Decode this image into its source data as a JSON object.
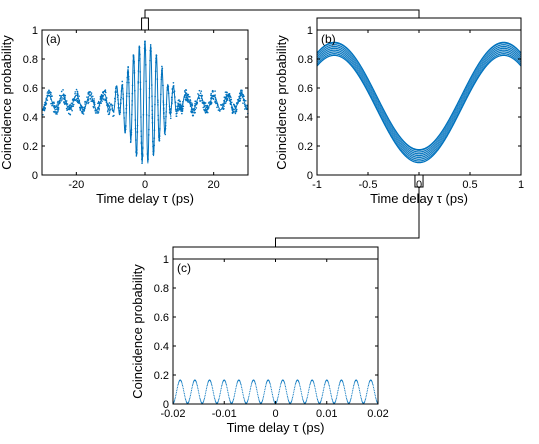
{
  "colors": {
    "series": "#0072BD",
    "axis": "#000000",
    "bracket": "#000000"
  },
  "chart_data": [
    {
      "id": "a",
      "type": "scatter",
      "panel_label": "(a)",
      "xlabel": "Time delay τ (ps)",
      "ylabel": "Coincidence probability",
      "xlim": [
        -30,
        30
      ],
      "ylim": [
        0,
        1
      ],
      "xticks": [
        -20,
        0,
        20
      ],
      "yticks": [
        0,
        0.2,
        0.4,
        0.6,
        0.8,
        1
      ],
      "xtick_labels": [
        "-20",
        "0",
        "20"
      ],
      "ytick_labels": [
        "0",
        "0.2",
        "0.4",
        "0.6",
        "0.8",
        "1"
      ],
      "grid": false,
      "series": [
        {
          "model": "HOM interference fringes",
          "baseline": 0.5,
          "peak_amplitude": 0.42,
          "envelope_width_ps": 4.5,
          "fringe_period_ps": 1.66,
          "background_fringe_amplitude": 0.05,
          "background_fringe_period_ps": 4.0,
          "noise_amplitude": 0.04,
          "x_range": [
            -30,
            30
          ]
        }
      ]
    },
    {
      "id": "b",
      "type": "scatter",
      "panel_label": "(b)",
      "xlabel": "Time delay τ (ps)",
      "ylabel": "Coincidence probability",
      "xlim": [
        -1,
        1
      ],
      "ylim": [
        0,
        1
      ],
      "xticks": [
        -1,
        -0.5,
        0,
        0.5,
        1
      ],
      "yticks": [
        0,
        0.2,
        0.4,
        0.6,
        0.8,
        1
      ],
      "xtick_labels": [
        "-1",
        "-0.5",
        "0",
        "0.5",
        "1"
      ],
      "ytick_labels": [
        "0",
        "0.2",
        "0.4",
        "0.6",
        "0.8",
        "1"
      ],
      "grid": false,
      "series": [
        {
          "model": "zoomed fringe",
          "center": 0.5,
          "amplitude": 0.37,
          "period_ps": 1.66,
          "band_halfwidth": 0.045,
          "x_range": [
            -1,
            1
          ]
        }
      ]
    },
    {
      "id": "c",
      "type": "scatter",
      "panel_label": "(c)",
      "xlabel": "Time delay τ (ps)",
      "ylabel": "Coincidence probability",
      "xlim": [
        -0.02,
        0.02
      ],
      "ylim": [
        0,
        1
      ],
      "xticks": [
        -0.02,
        -0.01,
        0,
        0.01,
        0.02
      ],
      "yticks": [
        0,
        0.2,
        0.4,
        0.6,
        0.8,
        1
      ],
      "xtick_labels": [
        "-0.02",
        "-0.01",
        "0",
        "0.01",
        "0.02"
      ],
      "ytick_labels": [
        "0",
        "0.2",
        "0.4",
        "0.6",
        "0.8",
        "1"
      ],
      "grid": false,
      "series": [
        {
          "model": "fine oscillation at minimum",
          "center": 0.085,
          "amplitude": 0.08,
          "period_ps": 0.00286,
          "x_range": [
            -0.02,
            0.02
          ]
        }
      ]
    }
  ],
  "zoom_links": [
    {
      "from": "a",
      "to": "b",
      "from_x_range": [
        -1,
        1
      ]
    },
    {
      "from": "b",
      "to": "c",
      "from_x_range": [
        -0.02,
        0.02
      ]
    }
  ]
}
